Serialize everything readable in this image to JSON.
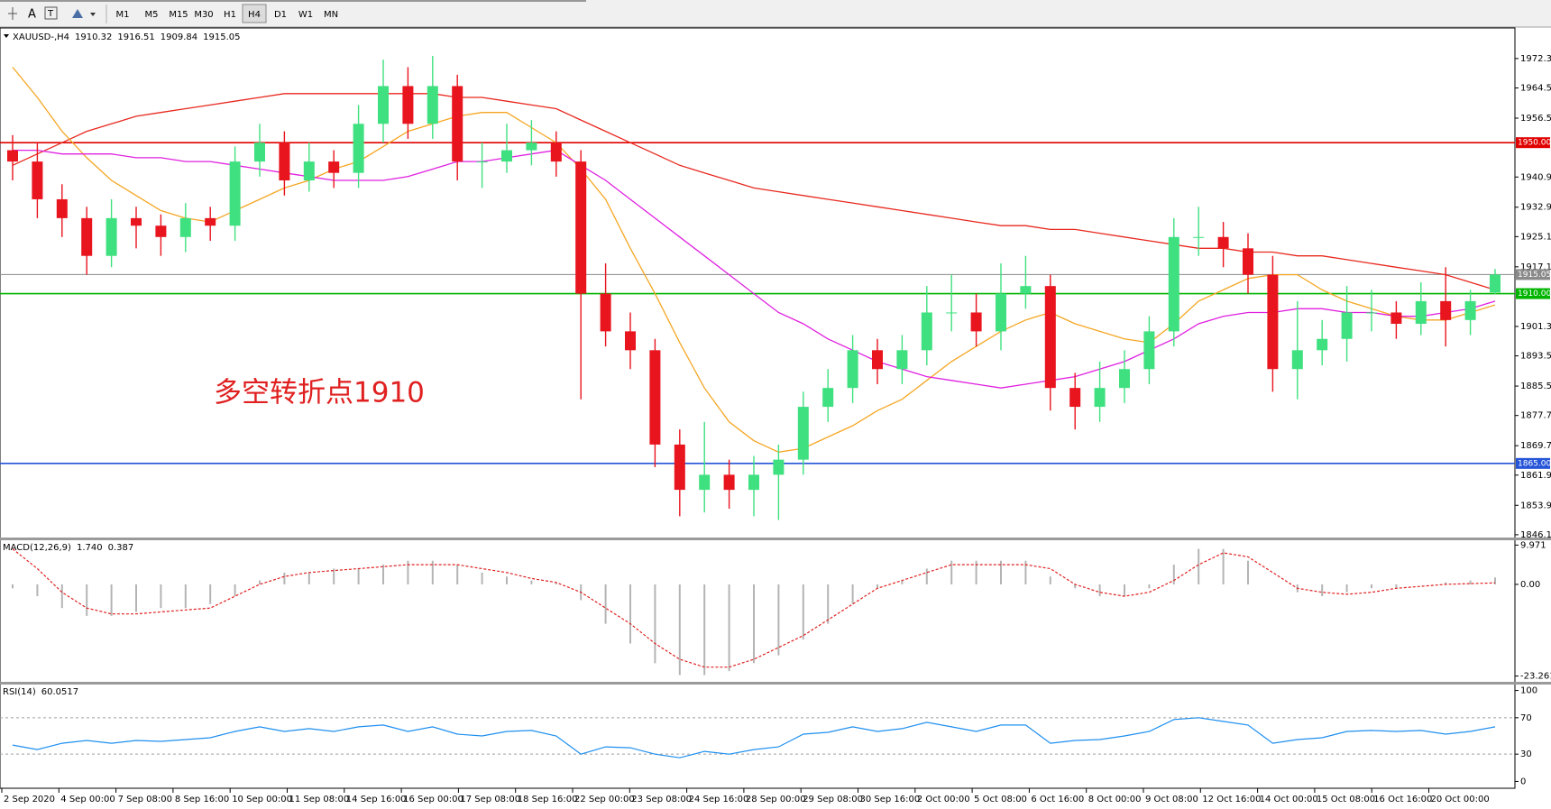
{
  "toolbar": {
    "text_tool": "A",
    "timeframes": [
      "M1",
      "M5",
      "M15",
      "M30",
      "H1",
      "H4",
      "D1",
      "W1",
      "MN"
    ],
    "active": "H4"
  },
  "chart_data": [
    {
      "type": "candlestick",
      "symbol": "XAUUSD-,H4",
      "ohlc_header": [
        1910.32,
        1916.51,
        1909.84,
        1915.05
      ],
      "open": [
        1948,
        1945,
        1935,
        1930,
        1920,
        1930,
        1928,
        1925,
        1930,
        1928,
        1945,
        1950,
        1940,
        1945,
        1942,
        1955,
        1965,
        1955,
        1965,
        1945,
        1945,
        1948,
        1950,
        1945,
        1910,
        1900,
        1895,
        1870,
        1858,
        1862,
        1858,
        1862,
        1866,
        1880,
        1885,
        1895,
        1890,
        1895,
        1905,
        1905,
        1900,
        1910,
        1912,
        1885,
        1880,
        1885,
        1890,
        1900,
        1925,
        1925,
        1922,
        1915,
        1890,
        1895,
        1898,
        1905,
        1905,
        1902,
        1908,
        1903,
        1910.32
      ],
      "high": [
        1952,
        1950,
        1939,
        1933,
        1935,
        1933,
        1931,
        1934,
        1933,
        1949,
        1955,
        1953,
        1950,
        1948,
        1960,
        1972,
        1970,
        1973,
        1968,
        1950,
        1955,
        1956,
        1953,
        1948,
        1918,
        1905,
        1898,
        1874,
        1876,
        1866,
        1867,
        1870,
        1884,
        1890,
        1899,
        1898,
        1899,
        1912,
        1915,
        1910,
        1918,
        1920,
        1915,
        1889,
        1892,
        1895,
        1904,
        1930,
        1933,
        1929,
        1926,
        1920,
        1908,
        1903,
        1912,
        1911,
        1908,
        1913,
        1917,
        1911,
        1916.51
      ],
      "low": [
        1940,
        1930,
        1925,
        1915,
        1917,
        1922,
        1920,
        1921,
        1924,
        1924,
        1941,
        1936,
        1937,
        1938,
        1938,
        1950,
        1951,
        1951,
        1940,
        1938,
        1942,
        1944,
        1941,
        1882,
        1896,
        1890,
        1864,
        1851,
        1852,
        1853,
        1851,
        1850,
        1862,
        1876,
        1881,
        1886,
        1886,
        1891,
        1900,
        1896,
        1895,
        1906,
        1879,
        1874,
        1876,
        1881,
        1886,
        1896,
        1920,
        1917,
        1910,
        1884,
        1882,
        1891,
        1892,
        1900,
        1898,
        1899,
        1896,
        1899,
        1909.84
      ],
      "close": [
        1945,
        1935,
        1930,
        1920,
        1930,
        1928,
        1925,
        1930,
        1928,
        1945,
        1950,
        1940,
        1945,
        1942,
        1955,
        1965,
        1955,
        1965,
        1945,
        1945,
        1948,
        1950,
        1945,
        1910,
        1900,
        1895,
        1870,
        1858,
        1862,
        1858,
        1862,
        1866,
        1880,
        1885,
        1895,
        1890,
        1895,
        1905,
        1905,
        1900,
        1910,
        1912,
        1885,
        1880,
        1885,
        1890,
        1900,
        1925,
        1925,
        1922,
        1915,
        1890,
        1895,
        1898,
        1905,
        1905,
        1902,
        1908,
        1903,
        1908,
        1915.05
      ],
      "up_color": "#3fe07f",
      "down_color": "#e8141e",
      "moving_averages": [
        {
          "color": "#e8281e",
          "values": [
            1944,
            1947,
            1950,
            1953,
            1955,
            1957,
            1958,
            1959,
            1960,
            1961,
            1962,
            1963,
            1963,
            1963,
            1963,
            1963,
            1963,
            1963,
            1962,
            1962,
            1961,
            1960,
            1959,
            1956,
            1953,
            1950,
            1947,
            1944,
            1942,
            1940,
            1938,
            1937,
            1936,
            1935,
            1934,
            1933,
            1932,
            1931,
            1930,
            1929,
            1928,
            1928,
            1927,
            1927,
            1926,
            1925,
            1924,
            1923,
            1922,
            1922,
            1921,
            1921,
            1920,
            1920,
            1919,
            1918,
            1917,
            1916,
            1915,
            1913,
            1911
          ]
        },
        {
          "color": "#f5a623",
          "values": [
            1970,
            1962,
            1953,
            1946,
            1940,
            1936,
            1932,
            1930,
            1929,
            1932,
            1935,
            1938,
            1940,
            1943,
            1945,
            1949,
            1953,
            1955,
            1957,
            1958,
            1958,
            1954,
            1950,
            1943,
            1935,
            1922,
            1910,
            1897,
            1885,
            1876,
            1871,
            1868,
            1869,
            1872,
            1875,
            1879,
            1882,
            1887,
            1892,
            1896,
            1900,
            1903,
            1905,
            1902,
            1900,
            1898,
            1897,
            1902,
            1908,
            1911,
            1914,
            1915,
            1915,
            1911,
            1908,
            1906,
            1904,
            1903,
            1903,
            1905,
            1907
          ]
        },
        {
          "color": "#e020e0",
          "values": [
            1948,
            1948,
            1947,
            1947,
            1947,
            1946,
            1946,
            1945,
            1945,
            1944,
            1943,
            1942,
            1941,
            1940,
            1940,
            1940,
            1941,
            1943,
            1945,
            1945,
            1946,
            1947,
            1948,
            1944,
            1940,
            1935,
            1930,
            1925,
            1920,
            1915,
            1910,
            1905,
            1902,
            1898,
            1895,
            1892,
            1890,
            1888,
            1887,
            1886,
            1885,
            1886,
            1887,
            1888,
            1890,
            1892,
            1895,
            1898,
            1902,
            1904,
            1905,
            1905,
            1906,
            1906,
            1905,
            1905,
            1904,
            1904,
            1905,
            1906,
            1908
          ]
        }
      ],
      "levels": [
        {
          "value": 1950,
          "label": "1950.00",
          "color": "#e00000"
        },
        {
          "value": 1915.05,
          "label": "1915.05",
          "color": "#8a8a8a"
        },
        {
          "value": 1910,
          "label": "1910.00",
          "color": "#00b400"
        },
        {
          "value": 1865,
          "label": "1865.00",
          "color": "#2454d8"
        }
      ],
      "annotation": {
        "text": "多空转折点1910",
        "color": "#e02020"
      },
      "ylim": [
        1845.6,
        1980.4
      ],
      "grid": false,
      "yticks": [
        {
          "value": 1972.3,
          "label": "1972.30"
        },
        {
          "value": 1964.5,
          "label": "1964.50"
        },
        {
          "value": 1956.5,
          "label": "1956.50"
        },
        {
          "value": 1940.9,
          "label": "1940.90"
        },
        {
          "value": 1932.9,
          "label": "1932.90"
        },
        {
          "value": 1925.1,
          "label": "1925.10"
        },
        {
          "value": 1917.1,
          "label": "1917.10"
        },
        {
          "value": 1901.3,
          "label": "1901.30"
        },
        {
          "value": 1893.5,
          "label": "1893.50"
        },
        {
          "value": 1885.5,
          "label": "1885.50"
        },
        {
          "value": 1877.7,
          "label": "1877.70"
        },
        {
          "value": 1869.7,
          "label": "1869.70"
        },
        {
          "value": 1861.9,
          "label": "1861.90"
        },
        {
          "value": 1853.9,
          "label": "1853.90"
        },
        {
          "value": 1846.1,
          "label": "1846.10"
        }
      ],
      "xlabels": [
        "2 Sep 2020",
        "4 Sep 00:00",
        "7 Sep 08:00",
        "8 Sep 16:00",
        "10 Sep 00:00",
        "11 Sep 08:00",
        "14 Sep 16:00",
        "16 Sep 00:00",
        "17 Sep 08:00",
        "18 Sep 16:00",
        "22 Sep 00:00",
        "23 Sep 08:00",
        "24 Sep 16:00",
        "28 Sep 00:00",
        "29 Sep 08:00",
        "30 Sep 16:00",
        "2 Oct 00:00",
        "5 Oct 08:00",
        "6 Oct 16:00",
        "8 Oct 00:00",
        "9 Oct 08:00",
        "12 Oct 16:00",
        "14 Oct 00:00",
        "15 Oct 08:00",
        "16 Oct 16:00",
        "20 Oct 00:00"
      ]
    },
    {
      "type": "macd",
      "title": "MACD(12,26,9)",
      "header_values": [
        {
          "value": 1.74,
          "label": "1.740"
        },
        0.387
      ],
      "histogram": {
        "color": "#b4b4b4",
        "values": [
          -1,
          -3,
          -6,
          -8,
          -8,
          -7,
          -6,
          -6,
          -5,
          -3,
          1,
          3,
          3,
          4,
          4,
          5,
          6,
          6,
          5,
          3,
          2,
          1,
          0.5,
          -4,
          -10,
          -15,
          -20,
          -23,
          -23,
          -22,
          -20,
          -18,
          -14,
          -10,
          -5,
          -1,
          1,
          4,
          6,
          6,
          6,
          6,
          2,
          -1,
          -3,
          -3,
          -1,
          5,
          9,
          9,
          6,
          0,
          -2,
          -3,
          -2,
          -1,
          -1,
          0,
          0.5,
          1,
          1.74
        ]
      },
      "signal": {
        "color": "#e02020",
        "values": [
          9,
          4,
          -2,
          -6,
          -7.5,
          -7.5,
          -7,
          -6.5,
          -6,
          -3,
          0,
          2,
          3,
          3.5,
          4,
          4.5,
          5,
          5,
          5,
          4,
          3,
          1.5,
          0.5,
          -2,
          -6,
          -10,
          -15,
          -19,
          -21,
          -21,
          -19,
          -16,
          -13,
          -9,
          -5,
          -1,
          1,
          3,
          5,
          5,
          5,
          5,
          4,
          0,
          -2,
          -3,
          -2,
          1,
          5,
          8,
          7,
          3,
          -1,
          -2,
          -2.5,
          -2,
          -1,
          -0.5,
          0,
          0.2,
          0.387
        ]
      },
      "ylim": [
        -24.5,
        11.2
      ],
      "yticks": [
        9.971,
        {
          "value": 0,
          "label": "0.00"
        },
        -23.261
      ]
    },
    {
      "type": "rsi",
      "title": "RSI(14)",
      "header_value": 60.0517,
      "color": "#1e8ff0",
      "values": [
        40,
        35,
        42,
        45,
        42,
        45,
        44,
        46,
        48,
        55,
        60,
        55,
        58,
        55,
        60,
        62,
        55,
        60,
        52,
        50,
        55,
        56,
        50,
        30,
        38,
        37,
        30,
        26,
        33,
        30,
        35,
        38,
        52,
        54,
        60,
        55,
        58,
        65,
        60,
        55,
        62,
        62,
        42,
        45,
        46,
        50,
        55,
        68,
        70,
        66,
        62,
        42,
        46,
        48,
        55,
        56,
        55,
        56,
        52,
        55,
        60.0517
      ],
      "dashed_levels": [
        70,
        30
      ],
      "ylim": [
        -7.5,
        106.5
      ],
      "yticks": [
        100,
        70,
        30,
        0
      ]
    }
  ]
}
